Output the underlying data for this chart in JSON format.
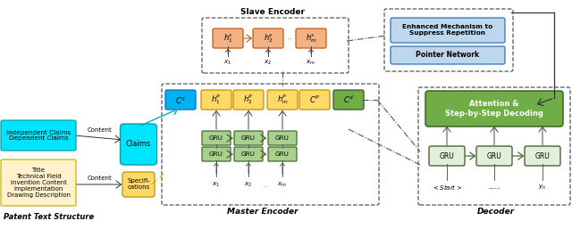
{
  "bg_color": "#ffffff",
  "slave_encoder_label": "Slave Encoder",
  "master_encoder_label": "Master Encoder",
  "patent_text_label": "Patent Text Structure",
  "decoder_label": "Decoder",
  "slave_nodes": [
    "$h_1^s$",
    "$h_2^s$",
    "$h_m^s$"
  ],
  "slave_x_labels": [
    "$x_1$",
    "$x_2$",
    "$x_m$"
  ],
  "slave_node_color": "#f4b183",
  "slave_node_edge": "#c55a11",
  "master_top_nodes": [
    "$C^q$",
    "$h_1^P$",
    "$h_2^P$",
    "$h_m^P$",
    "$C^P$",
    "$C^d$"
  ],
  "master_top_colors": [
    "#00b0f0",
    "#ffd966",
    "#ffd966",
    "#ffd966",
    "#ffd966",
    "#70ad47"
  ],
  "master_top_edges": [
    "#0070c0",
    "#c09000",
    "#c09000",
    "#c09000",
    "#c09000",
    "#375623"
  ],
  "gru_color": "#a9d18e",
  "gru_edge": "#375623",
  "claims_color": "#00e5ff",
  "claims_edge": "#009faa",
  "specs_color": "#ffd966",
  "specs_edge": "#c09000",
  "cyan_box_color": "#00e5ff",
  "yellow_box_color": "#fff2cc",
  "pointer_box_color": "#bdd7ee",
  "pointer_edge": "#2e75b6",
  "enhanced_text": "Enhanced Mechanism to\nSuppress Repetition",
  "pointer_text": "Pointer Network",
  "attention_text": "Attention &\nStep-by-Step Decoding",
  "attention_color": "#70ad47",
  "attention_edge": "#375623",
  "decoder_gru_color": "#e2efda",
  "decoder_gru_edge": "#375623",
  "cyan_claims_text": "Independent Claims\nDependent Claims",
  "yellow_spec_text": "Title\nTechnical Field\nInvention Content\nImplementation\nDrawing Description",
  "claims_node_text": "Claims",
  "specs_node_text": "Specifi-\ncations"
}
